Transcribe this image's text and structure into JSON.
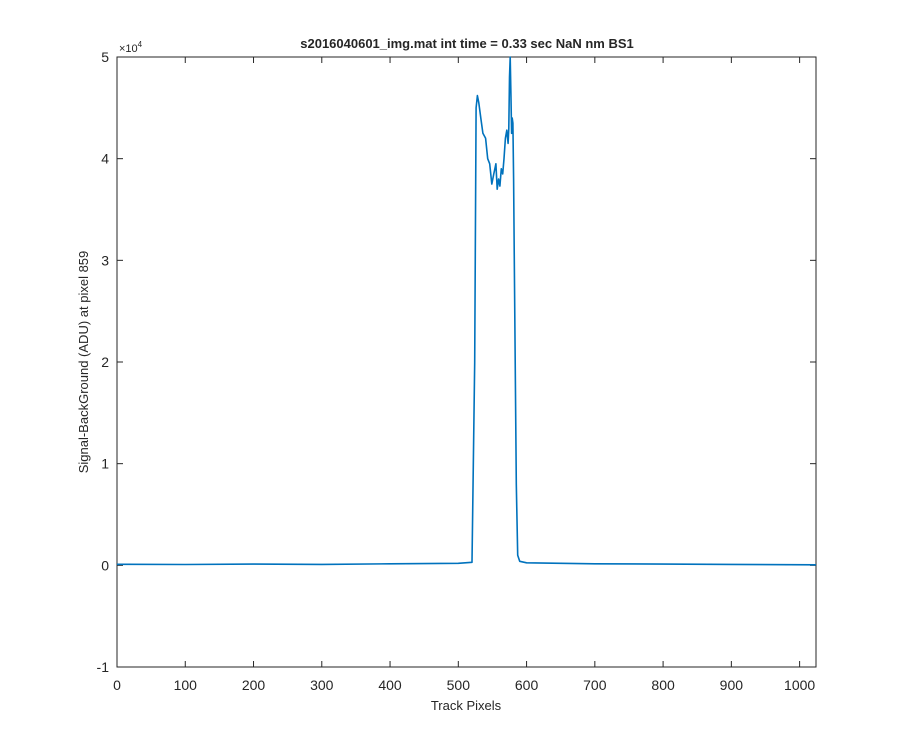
{
  "chart_data": {
    "type": "line",
    "title": "s2016040601_img.mat int time = 0.33 sec  NaN nm BS1",
    "xlabel": "Track Pixels",
    "ylabel": "Signal-BackGround (ADU) at pixel 859",
    "xlim": [
      0,
      1024
    ],
    "ylim": [
      -10000,
      50000
    ],
    "y_exponent_label": "×10",
    "y_exponent_power": "4",
    "x_ticks": [
      0,
      100,
      200,
      300,
      400,
      500,
      600,
      700,
      800,
      900,
      1000
    ],
    "x_tick_labels": [
      "0",
      "100",
      "200",
      "300",
      "400",
      "500",
      "600",
      "700",
      "800",
      "900",
      "1000"
    ],
    "y_ticks": [
      -10000,
      0,
      10000,
      20000,
      30000,
      40000,
      50000
    ],
    "y_tick_labels": [
      "-1",
      "0",
      "1",
      "2",
      "3",
      "4",
      "5"
    ],
    "grid": false,
    "line_color": "#0072BD",
    "axis_color": "#262626",
    "series": [
      {
        "x": [
          0,
          100,
          200,
          300,
          400,
          500,
          520,
          524,
          526,
          528,
          530,
          533,
          536,
          540,
          543,
          546,
          549,
          552,
          555,
          557,
          559,
          561,
          563,
          565,
          567,
          569,
          571,
          573,
          574,
          575,
          576,
          577,
          578,
          579,
          580,
          581,
          582,
          585,
          587,
          590,
          600,
          700,
          800,
          900,
          1024
        ],
        "y": [
          100,
          80,
          120,
          90,
          150,
          200,
          300,
          20000,
          45000,
          46200,
          45500,
          44000,
          42500,
          42000,
          40000,
          39500,
          37500,
          38500,
          39500,
          37000,
          38000,
          37300,
          39000,
          38500,
          40000,
          42000,
          42800,
          41500,
          43000,
          48000,
          50000,
          46500,
          42500,
          44000,
          43500,
          38000,
          30000,
          8000,
          1000,
          400,
          250,
          150,
          120,
          90,
          50
        ]
      }
    ]
  }
}
